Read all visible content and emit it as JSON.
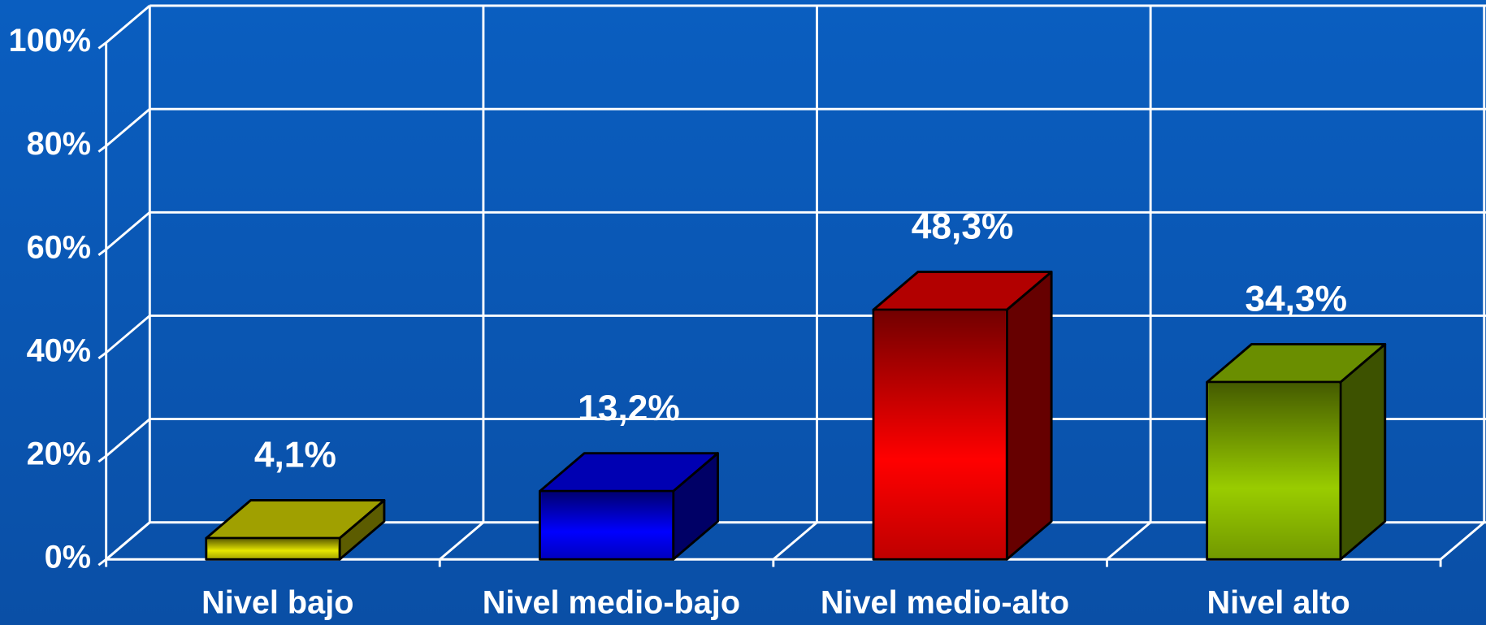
{
  "chart_data": {
    "type": "bar",
    "categories": [
      "Nivel bajo",
      "Nivel medio-bajo",
      "Nivel medio-alto",
      "Nivel alto"
    ],
    "values": [
      4.1,
      13.2,
      48.3,
      34.3
    ],
    "value_labels": [
      "4,1%",
      "13,2%",
      "48,3%",
      "34,3%"
    ],
    "colors": [
      "#e6e600",
      "#0000ff",
      "#ff0000",
      "#99cc00"
    ],
    "ylim": [
      0,
      100
    ],
    "yticks": [
      {
        "value": 0,
        "label": "0%"
      },
      {
        "value": 20,
        "label": "20%"
      },
      {
        "value": 40,
        "label": "40%"
      },
      {
        "value": 60,
        "label": "60%"
      },
      {
        "value": 80,
        "label": "80%"
      },
      {
        "value": 100,
        "label": "100%"
      }
    ],
    "grid": true
  }
}
